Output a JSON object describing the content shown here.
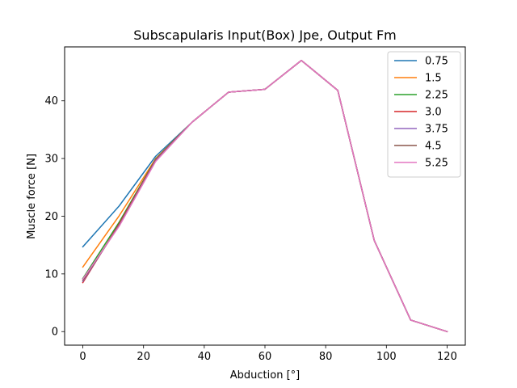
{
  "chart_data": {
    "type": "line",
    "title": "Subscapularis Input(Box) Jpe, Output Fm",
    "xlabel": "Abduction [°]",
    "ylabel": "Muscle force [N]",
    "xlim": [
      -6,
      126
    ],
    "ylim": [
      -2.35,
      49.35
    ],
    "xticks": [
      0,
      20,
      40,
      60,
      80,
      100,
      120
    ],
    "yticks": [
      0,
      10,
      20,
      30,
      40
    ],
    "grid": false,
    "legend_position": "top-right",
    "x": [
      0,
      12,
      24,
      36,
      48,
      60,
      72,
      84,
      96,
      108,
      120
    ],
    "series": [
      {
        "name": "0.75",
        "color": "#1f77b4",
        "values": [
          14.7,
          21.8,
          30.4,
          36.3,
          41.5,
          42.0,
          47.0,
          41.8,
          15.8,
          2.0,
          0.0
        ]
      },
      {
        "name": "1.5",
        "color": "#ff7f0e",
        "values": [
          11.2,
          20.1,
          30.0,
          36.3,
          41.5,
          42.0,
          47.0,
          41.8,
          15.8,
          2.0,
          0.0
        ]
      },
      {
        "name": "2.25",
        "color": "#2ca02c",
        "values": [
          9.2,
          19.0,
          29.9,
          36.3,
          41.5,
          42.0,
          47.0,
          41.8,
          15.8,
          2.0,
          0.0
        ]
      },
      {
        "name": "3.0",
        "color": "#d62728",
        "values": [
          8.5,
          18.7,
          29.8,
          36.3,
          41.5,
          42.0,
          47.0,
          41.8,
          15.8,
          2.0,
          0.0
        ]
      },
      {
        "name": "3.75",
        "color": "#9467bd",
        "values": [
          8.7,
          18.5,
          29.7,
          36.3,
          41.5,
          42.0,
          47.0,
          41.8,
          15.8,
          2.0,
          0.0
        ]
      },
      {
        "name": "4.5",
        "color": "#8c564b",
        "values": [
          8.9,
          18.4,
          29.6,
          36.3,
          41.5,
          42.0,
          47.0,
          41.8,
          15.8,
          2.0,
          0.0
        ]
      },
      {
        "name": "5.25",
        "color": "#e377c2",
        "values": [
          9.1,
          18.3,
          29.5,
          36.3,
          41.5,
          42.0,
          47.0,
          41.8,
          15.8,
          2.0,
          0.0
        ]
      }
    ]
  }
}
